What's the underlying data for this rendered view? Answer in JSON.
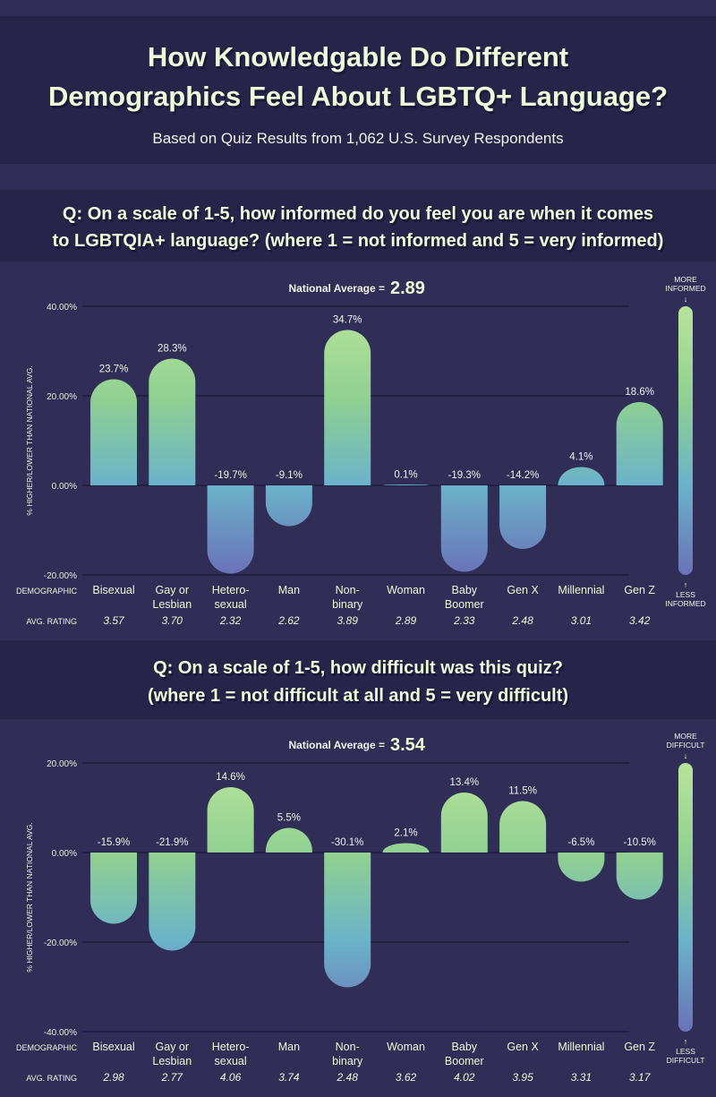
{
  "header": {
    "title_line1": "How Knowledgable Do Different",
    "title_line2": "Demographics Feel About LGBTQ+ Language?",
    "subtitle": "Based on Quiz Results from 1,062 U.S. Survey Respondents"
  },
  "colors": {
    "background": "#302d56",
    "band": "#27244a",
    "title_text": "#eefad8",
    "bar_top": "#b8e49a",
    "bar_mid": "#7fc4a8",
    "bar_low": "#6bb3c9",
    "bar_bottom": "#6a72b8"
  },
  "chart_data": [
    {
      "type": "bar",
      "question_line1": "Q: On a scale of 1-5, how informed do you feel you are when it comes",
      "question_line2": "to LGBTQIA+ language? (where 1 = not informed and 5 = very informed)",
      "national_avg_label": "National Average =",
      "national_avg_value": "2.89",
      "ylabel": "% HIGHER/LOWER THAN NATIONAL AVG.",
      "ylim": [
        -20,
        40
      ],
      "yticks": [
        40,
        20,
        0,
        -20
      ],
      "ytick_labels": [
        "40.00%",
        "20.00%",
        "0.00%",
        "-20.00%"
      ],
      "grid": true,
      "row_label_demographic": "DEMOGRAPHIC",
      "row_label_rating": "AVG. RATING",
      "categories": [
        "Bisexual",
        "Gay or Lesbian",
        "Hetero-sexual",
        "Man",
        "Non-binary",
        "Woman",
        "Baby Boomer",
        "Gen X",
        "Millennial",
        "Gen Z"
      ],
      "category_lines": [
        [
          "Bisexual"
        ],
        [
          "Gay or",
          "Lesbian"
        ],
        [
          "Hetero-",
          "sexual"
        ],
        [
          "Man"
        ],
        [
          "Non-",
          "binary"
        ],
        [
          "Woman"
        ],
        [
          "Baby",
          "Boomer"
        ],
        [
          "Gen X"
        ],
        [
          "Millennial"
        ],
        [
          "Gen Z"
        ]
      ],
      "values": [
        23.7,
        28.3,
        -19.7,
        -9.1,
        34.7,
        0.1,
        -19.3,
        -14.2,
        4.1,
        18.6
      ],
      "value_labels": [
        "23.7%",
        "28.3%",
        "-19.7%",
        "-9.1%",
        "34.7%",
        "0.1%",
        "-19.3%",
        "-14.2%",
        "4.1%",
        "18.6%"
      ],
      "avg_ratings": [
        "3.57",
        "3.70",
        "2.32",
        "2.62",
        "3.89",
        "2.89",
        "2.33",
        "2.48",
        "3.01",
        "3.42"
      ],
      "legend_top": [
        "MORE",
        "INFORMED"
      ],
      "legend_bottom": [
        "LESS",
        "INFORMED"
      ]
    },
    {
      "type": "bar",
      "question_line1": "Q: On a scale of 1-5, how difficult was this quiz?",
      "question_line2": "(where 1 = not difficult at all and 5 = very difficult)",
      "national_avg_label": "National Average =",
      "national_avg_value": "3.54",
      "ylabel": "% HIGHER/LOWER THAN NATIONAL AVG.",
      "ylim": [
        -40,
        20
      ],
      "yticks": [
        20,
        0,
        -20,
        -40
      ],
      "ytick_labels": [
        "20.00%",
        "0.00%",
        "-20.00%",
        "-40.00%"
      ],
      "grid": true,
      "row_label_demographic": "DEMOGRAPHIC",
      "row_label_rating": "AVG. RATING",
      "categories": [
        "Bisexual",
        "Gay or Lesbian",
        "Hetero-sexual",
        "Man",
        "Non-binary",
        "Woman",
        "Baby Boomer",
        "Gen X",
        "Millennial",
        "Gen Z"
      ],
      "category_lines": [
        [
          "Bisexual"
        ],
        [
          "Gay or",
          "Lesbian"
        ],
        [
          "Hetero-",
          "sexual"
        ],
        [
          "Man"
        ],
        [
          "Non-",
          "binary"
        ],
        [
          "Woman"
        ],
        [
          "Baby",
          "Boomer"
        ],
        [
          "Gen X"
        ],
        [
          "Millennial"
        ],
        [
          "Gen Z"
        ]
      ],
      "values": [
        -15.9,
        -21.9,
        14.6,
        5.5,
        -30.1,
        2.1,
        13.4,
        11.5,
        -6.5,
        -10.5
      ],
      "value_labels": [
        "-15.9%",
        "-21.9%",
        "14.6%",
        "5.5%",
        "-30.1%",
        "2.1%",
        "13.4%",
        "11.5%",
        "-6.5%",
        "-10.5%"
      ],
      "avg_ratings": [
        "2.98",
        "2.77",
        "4.06",
        "3.74",
        "2.48",
        "3.62",
        "4.02",
        "3.95",
        "3.31",
        "3.17"
      ],
      "legend_top": [
        "MORE",
        "DIFFICULT"
      ],
      "legend_bottom": [
        "LESS",
        "DIFFICULT"
      ]
    }
  ]
}
